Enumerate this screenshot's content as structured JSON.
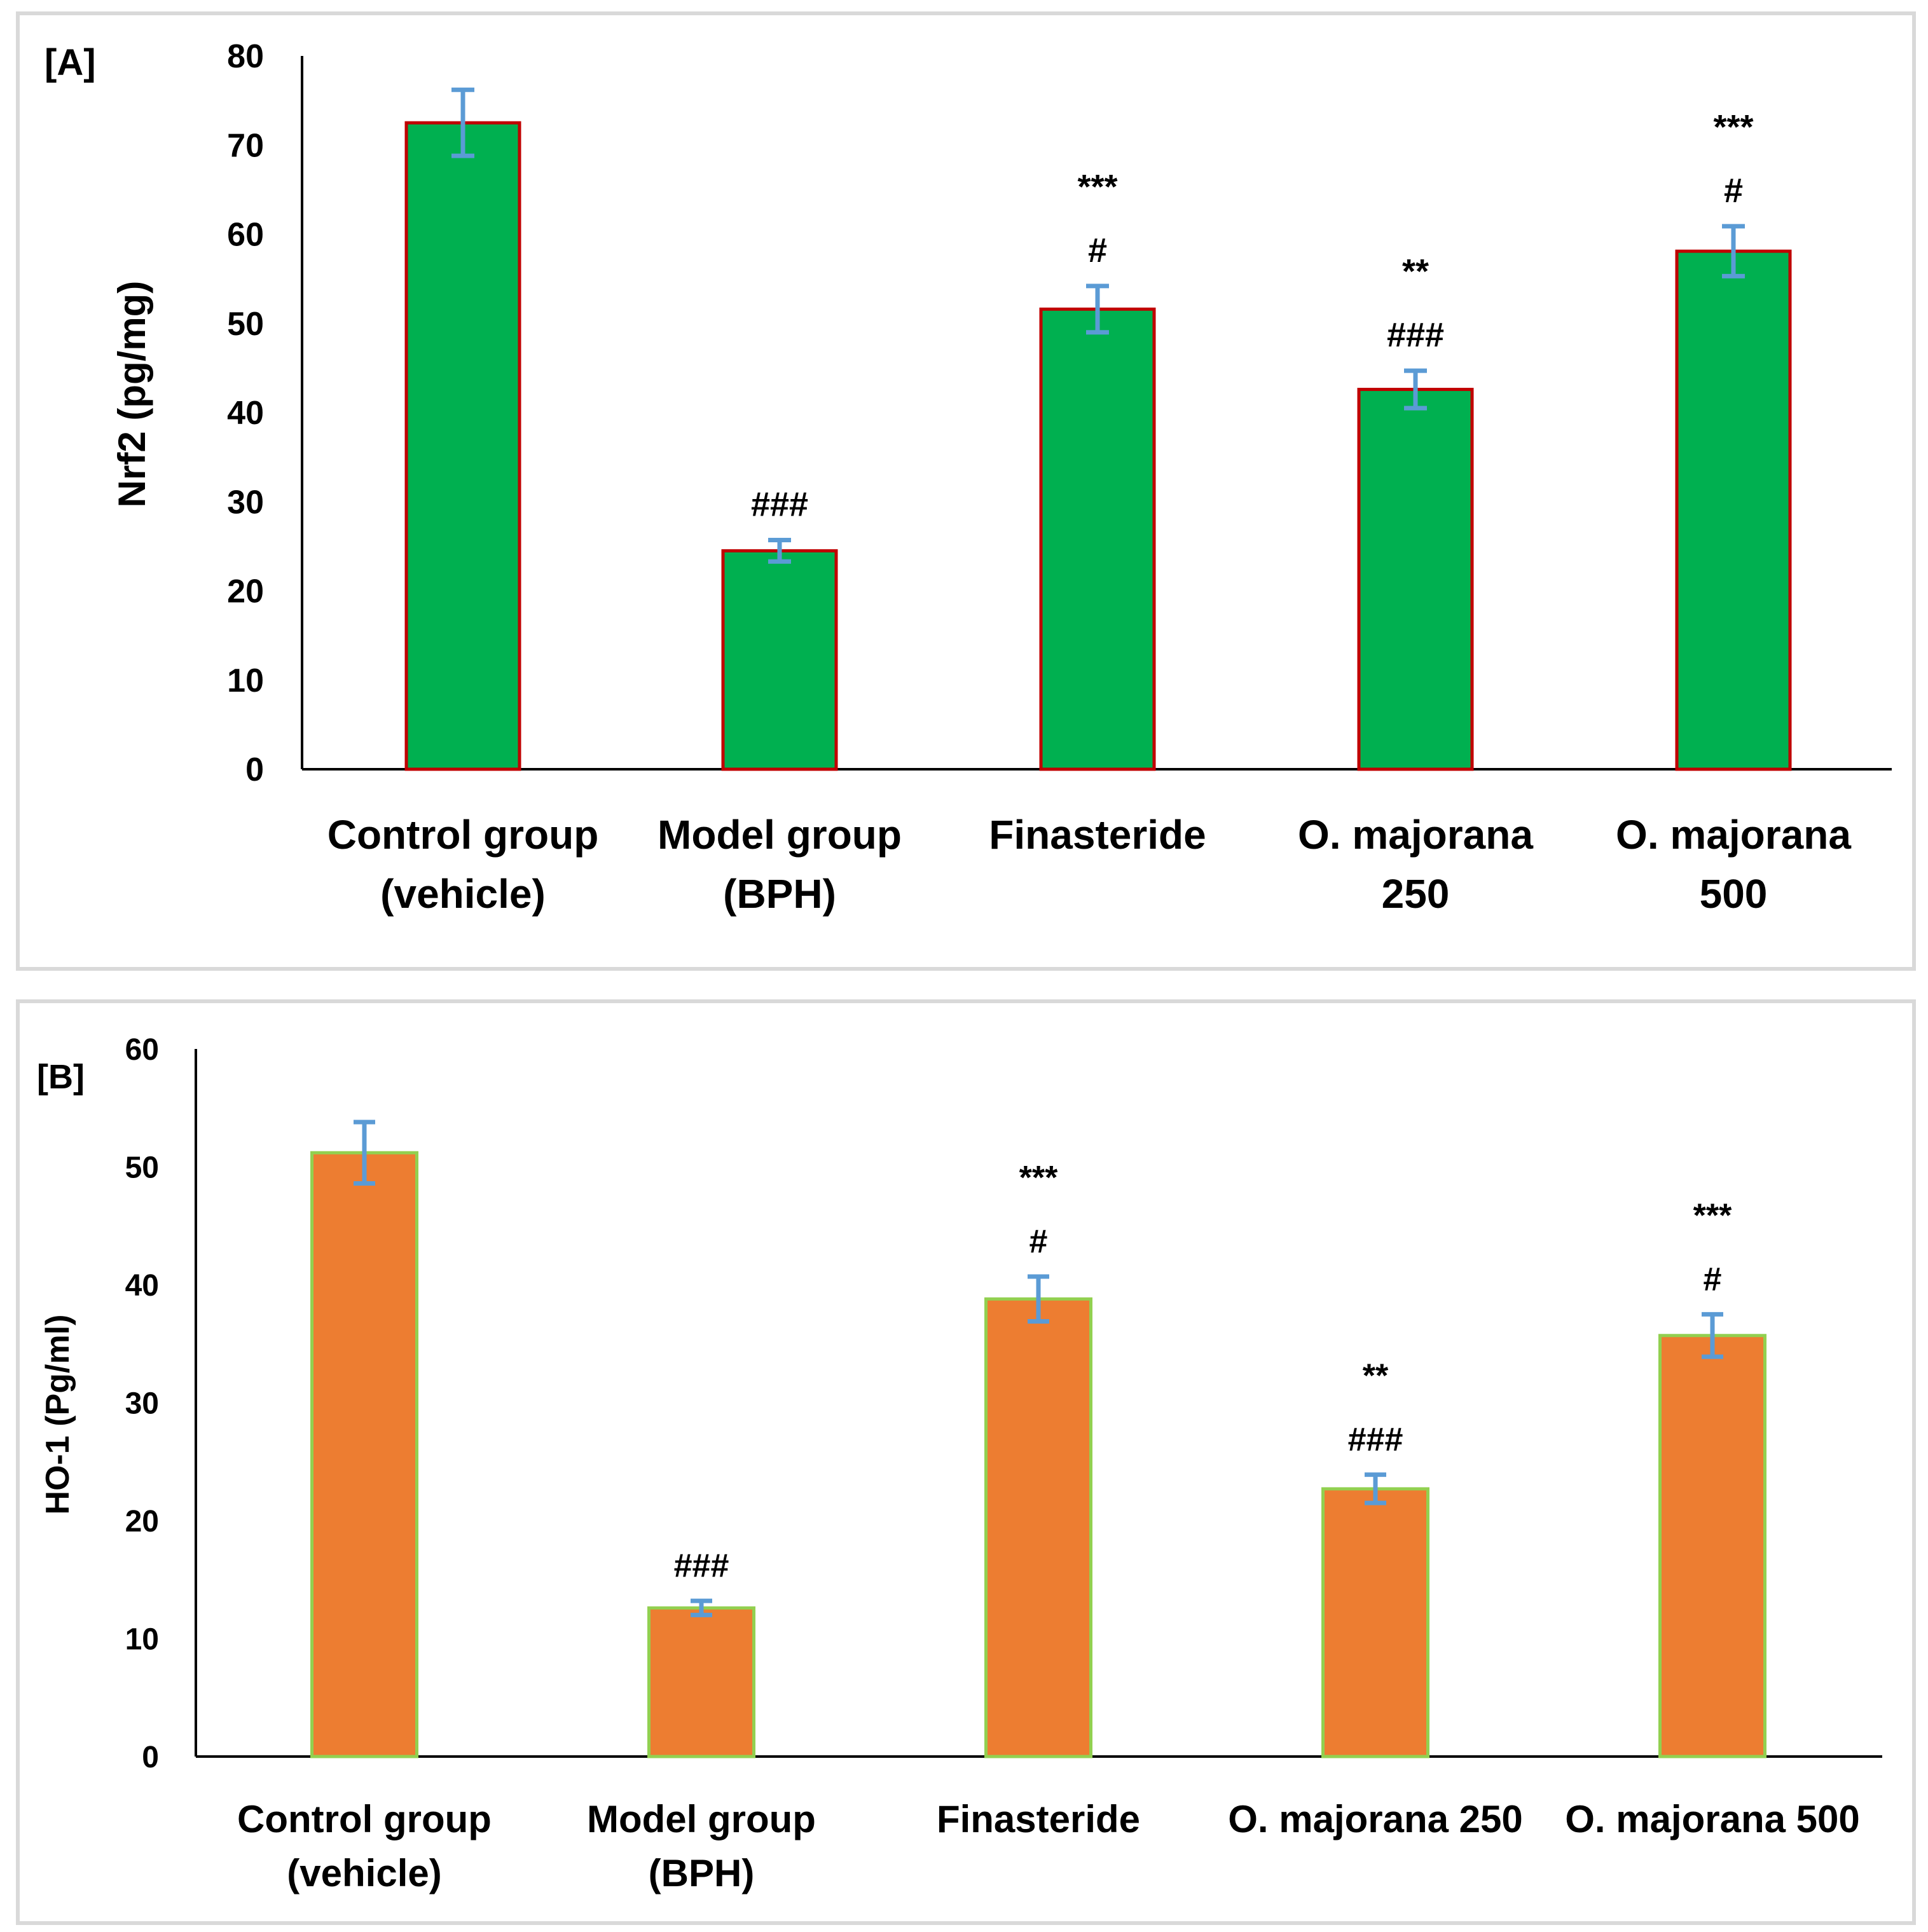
{
  "colors": {
    "panel_border": "#d9d9d9",
    "axis": "#000000",
    "error_bar": "#5b9bd5",
    "A_fill": "#00b050",
    "A_stroke": "#c00000",
    "B_fill": "#ed7d31",
    "B_stroke": "#92d050"
  },
  "chart_data": [
    {
      "type": "bar",
      "panel_label": "[A]",
      "title": "",
      "xlabel": "",
      "ylabel": "Nrf2 (pg/mg)",
      "ylim": [
        0,
        80
      ],
      "yticks": [
        "0",
        "10",
        "20",
        "30",
        "40",
        "50",
        "60",
        "70",
        "80"
      ],
      "categories": [
        [
          "Control group",
          "(vehicle)"
        ],
        [
          "Model group",
          "(BPH)"
        ],
        [
          "Finasteride"
        ],
        [
          "O. majorana",
          "250"
        ],
        [
          "O. majorana",
          "500"
        ]
      ],
      "values": [
        72.5,
        24.5,
        51.6,
        42.6,
        58.1
      ],
      "errors": [
        3.7,
        1.2,
        2.6,
        2.1,
        2.8
      ],
      "annotations": [
        [],
        [
          "###"
        ],
        [
          "***",
          "#"
        ],
        [
          "**",
          "###"
        ],
        [
          "***",
          "#"
        ]
      ],
      "grid": false
    },
    {
      "type": "bar",
      "panel_label": "[B]",
      "title": "",
      "xlabel": "",
      "ylabel": "HO-1 (Pg/ml)",
      "ylim": [
        0,
        60
      ],
      "yticks": [
        "0",
        "10",
        "20",
        "30",
        "40",
        "50",
        "60"
      ],
      "categories": [
        [
          "Control group",
          "(vehicle)"
        ],
        [
          "Model group",
          "(BPH)"
        ],
        [
          "Finasteride"
        ],
        [
          "O. majorana 250"
        ],
        [
          "O. majorana 500"
        ]
      ],
      "values": [
        51.2,
        12.6,
        38.8,
        22.7,
        35.7
      ],
      "errors": [
        2.6,
        0.6,
        1.9,
        1.2,
        1.8
      ],
      "annotations": [
        [],
        [
          "###"
        ],
        [
          "***",
          "#"
        ],
        [
          "**",
          "###"
        ],
        [
          "***",
          "#"
        ]
      ],
      "grid": false
    }
  ]
}
